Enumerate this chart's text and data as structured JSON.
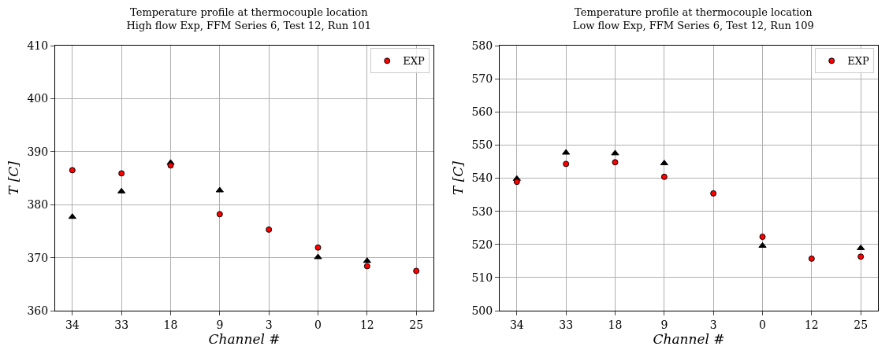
{
  "chart_data": [
    {
      "type": "scatter",
      "title": "Temperature profile at thermocouple location",
      "subtitle": "High flow Exp, FFM Series 6, Test 12, Run 101",
      "xlabel": "Channel #",
      "ylabel": "T [C]",
      "categories": [
        "34",
        "33",
        "18",
        "9",
        "3",
        "0",
        "12",
        "25"
      ],
      "ylim": [
        360,
        410
      ],
      "yticks": [
        360,
        370,
        380,
        390,
        400,
        410
      ],
      "grid": true,
      "legend": "top right",
      "series": [
        {
          "color": "#000000",
          "marker": "triangle",
          "values": [
            377.7,
            382.5,
            387.9,
            382.7,
            null,
            370.1,
            369.4,
            null
          ]
        },
        {
          "name": "EXP",
          "color": "#ff0000",
          "marker": "circle",
          "values": [
            386.5,
            385.9,
            387.4,
            378.2,
            375.3,
            371.9,
            368.4,
            367.5
          ]
        }
      ]
    },
    {
      "type": "scatter",
      "title": "Temperature profile at thermocouple location",
      "subtitle": "Low flow Exp, FFM Series 6, Test 12, Run 109",
      "xlabel": "Channel #",
      "ylabel": "T [C]",
      "categories": [
        "34",
        "33",
        "18",
        "9",
        "3",
        "0",
        "12",
        "25"
      ],
      "ylim": [
        500,
        580
      ],
      "yticks": [
        500,
        510,
        520,
        530,
        540,
        550,
        560,
        570,
        580
      ],
      "grid": true,
      "legend": "top right",
      "series": [
        {
          "color": "#000000",
          "marker": "triangle",
          "values": [
            539.8,
            547.7,
            547.5,
            544.5,
            null,
            519.6,
            null,
            518.9
          ]
        },
        {
          "name": "EXP",
          "color": "#ff0000",
          "marker": "circle",
          "values": [
            538.9,
            544.3,
            544.8,
            540.4,
            535.4,
            522.3,
            515.7,
            516.3
          ]
        }
      ]
    }
  ]
}
